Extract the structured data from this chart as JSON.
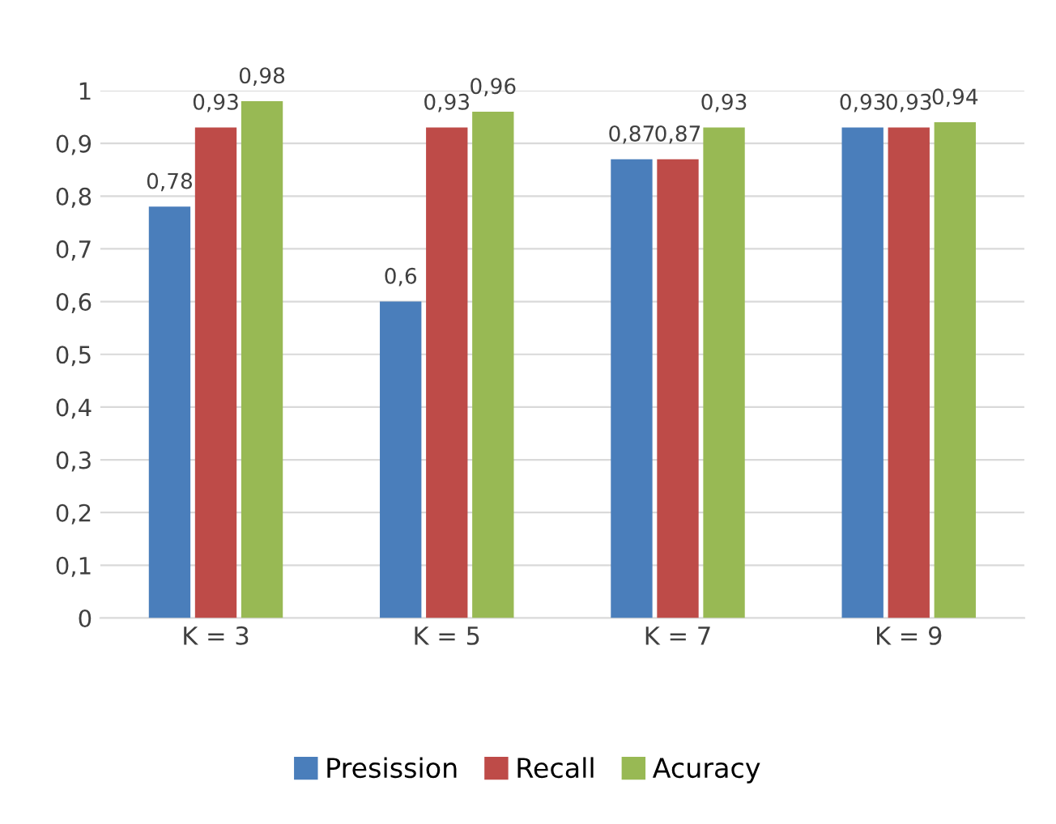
{
  "chart_data": {
    "type": "bar",
    "categories": [
      "K = 3",
      "K = 5",
      "K = 7",
      "K = 9"
    ],
    "series": [
      {
        "name": "Presission",
        "color": "#4a7ebb",
        "values": [
          0.78,
          0.6,
          0.87,
          0.93
        ],
        "value_labels": [
          "0,78",
          "0,6",
          "0,87",
          "0,93"
        ]
      },
      {
        "name": "Recall",
        "color": "#be4b48",
        "values": [
          0.93,
          0.93,
          0.87,
          0.93
        ],
        "value_labels": [
          "0,93",
          "0,93",
          "0,87",
          "0,93"
        ]
      },
      {
        "name": "Acuracy",
        "color": "#98b954",
        "values": [
          0.98,
          0.96,
          0.93,
          0.94
        ],
        "value_labels": [
          "0,98",
          "0,96",
          "0,93",
          "0,94"
        ]
      }
    ],
    "ylim": [
      0,
      1
    ],
    "yticks": [
      0,
      {
        "value": 0.1,
        "label": "0,1"
      },
      {
        "value": 0.2,
        "label": "0,2"
      },
      {
        "value": 0.3,
        "label": "0,3"
      },
      {
        "value": 0.4,
        "label": "0,4"
      },
      {
        "value": 0.5,
        "label": "0,5"
      },
      {
        "value": 0.6,
        "label": "0,6"
      },
      {
        "value": 0.7,
        "label": "0,7"
      },
      {
        "value": 0.8,
        "label": "0,8"
      },
      {
        "value": 0.9,
        "label": "0,9"
      },
      1
    ],
    "grid": "y",
    "legend": "bottom"
  }
}
